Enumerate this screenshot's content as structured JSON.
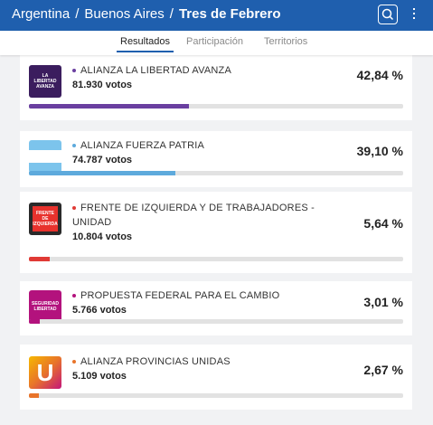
{
  "header": {
    "breadcrumbs": [
      "Argentina",
      "Buenos Aires",
      "Tres de Febrero"
    ],
    "separator": "/"
  },
  "tabs": [
    "Resultados",
    "Participación",
    "Territorios"
  ],
  "results": [
    {
      "logo_text": "LA LIBERTAD AVANZA",
      "name": "ALIANZA LA LIBERTAD AVANZA",
      "votes": "81.930 votos",
      "share": 42.84,
      "share_label": "42,84 %",
      "color": "#6a3fa0",
      "logo_color": "#3b1d5e"
    },
    {
      "logo_text": "",
      "name": "ALIANZA FUERZA PATRIA",
      "votes": "74.787 votos",
      "share": 39.1,
      "share_label": "39,10 %",
      "color": "#5eaadc",
      "logo_color": "flag"
    },
    {
      "logo_text": "FRENTE DE IZQUIERDA",
      "name": "FRENTE DE IZQUIERDA Y DE TRABAJADORES - UNIDAD",
      "votes": "10.804 votos",
      "share": 5.64,
      "share_label": "5,64 %",
      "color": "#e03a35",
      "logo_color": "#e8322d"
    },
    {
      "logo_text": "SEGURIDAD LIBERTAD",
      "name": "PROPUESTA FEDERAL PARA EL CAMBIO",
      "votes": "5.766 votos",
      "share": 3.01,
      "share_label": "3,01 %",
      "color": "#b3127d",
      "logo_color": "#b3127d"
    },
    {
      "logo_text": "U",
      "name": "ALIANZA PROVINCIAS UNIDAS",
      "votes": "5.109 votos",
      "share": 2.67,
      "share_label": "2,67 %",
      "color": "#e8742a",
      "logo_color": "#ffffff"
    }
  ]
}
